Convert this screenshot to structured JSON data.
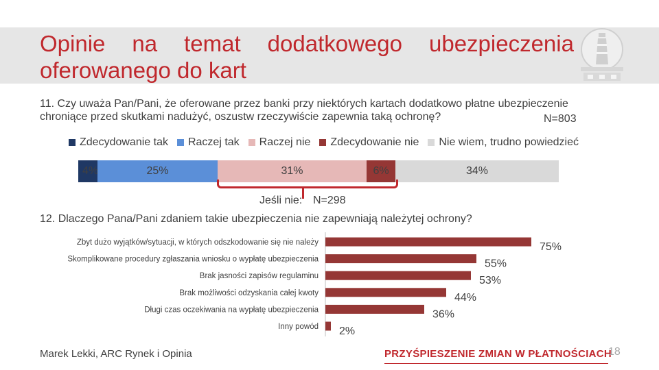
{
  "title": {
    "words_line1": [
      "Opinie",
      "na",
      "temat",
      "dodatkowego",
      "ubezpieczenia"
    ],
    "line2": "oferowanego do kart"
  },
  "q11": {
    "line1": "11. Czy uważa Pan/Pani, że oferowane przez banki przy niektórych kartach dodatkowo płatne ubezpieczenie",
    "line2": "chroniące przed skutkami nadużyć, oszustw rzeczywiście zapewnia taką ochronę?",
    "n": "N=803"
  },
  "q12": {
    "subset_label": "Jeśli nie:",
    "subset_n": "N=298",
    "text": "12. Dlaczego Pana/Pani zdaniem takie ubezpieczenia nie zapewniają należytej ochrony?"
  },
  "footer": {
    "author": "Marek Lekki, ARC Rynek i Opinia",
    "slogan": "PRZYŚPIESZENIE ZMIAN W PŁATNOŚCIACH",
    "page": "18"
  },
  "colors": {
    "accent": "#c0282d",
    "zdecydowanie_tak": "#1f3864",
    "raczej_tak": "#5b8fd8",
    "raczej_nie": "#e6b8b7",
    "zdecydowanie_nie": "#953735",
    "nie_wiem": "#d9d9d9"
  },
  "chart_data": [
    {
      "type": "bar",
      "orientation": "horizontal-stacked",
      "series": [
        {
          "name": "Zdecydowanie tak",
          "values": [
            4
          ],
          "label": "4%",
          "color": "#1f3864"
        },
        {
          "name": "Raczej tak",
          "values": [
            25
          ],
          "label": "25%",
          "color": "#5b8fd8"
        },
        {
          "name": "Raczej nie",
          "values": [
            31
          ],
          "label": "31%",
          "color": "#e6b8b7"
        },
        {
          "name": "Zdecydowanie nie",
          "values": [
            6
          ],
          "label": "6%",
          "color": "#953735"
        },
        {
          "name": "Nie wiem, trudno powiedzieć",
          "values": [
            34
          ],
          "label": "34%",
          "color": "#d9d9d9"
        }
      ],
      "legend": "top"
    },
    {
      "type": "bar",
      "orientation": "horizontal",
      "categories": [
        "Zbyt dużo wyjątków/sytuacji, w których odszkodowanie się nie należy",
        "Skomplikowane procedury zgłaszania wniosku o wypłatę ubezpieczenia",
        "Brak jasności zapisów regulaminu",
        "Brak możliwości odzyskania całej kwoty",
        "Długi czas oczekiwania na wypłatę ubezpieczenia",
        "Inny powód"
      ],
      "values": [
        75,
        55,
        53,
        44,
        36,
        2
      ],
      "labels": [
        "75%",
        "55%",
        "53%",
        "44%",
        "36%",
        "2%"
      ],
      "color": "#953735",
      "xlim": [
        0,
        100
      ]
    }
  ]
}
